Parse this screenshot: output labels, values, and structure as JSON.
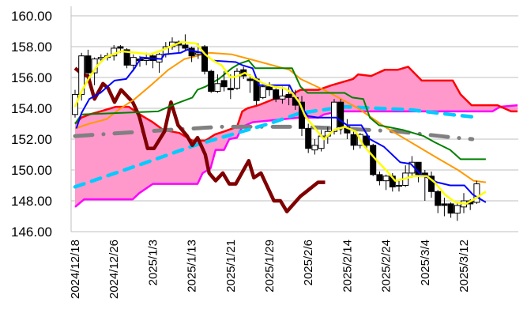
{
  "chart_data": {
    "type": "candlestick",
    "title": "",
    "ylim": [
      146,
      160
    ],
    "y_ticks": [
      "146.00",
      "148.00",
      "150.00",
      "152.00",
      "154.00",
      "156.00",
      "158.00",
      "160.00"
    ],
    "y_tick_values": [
      146,
      148,
      150,
      152,
      154,
      156,
      158,
      160
    ],
    "x_tick_labels": [
      "2024/12/18",
      "2024/12/26",
      "2025/1/3",
      "2025/1/13",
      "2025/1/21",
      "2025/1/29",
      "2025/2/6",
      "2025/2/14",
      "2025/2/24",
      "2025/3/4",
      "2025/3/12"
    ],
    "x_tick_index": [
      0,
      6,
      12,
      18,
      24,
      30,
      36,
      42,
      48,
      54,
      60
    ],
    "grid": true,
    "colors": {
      "cloud": "#ff99cc",
      "senkou_a": "#ff0000",
      "senkou_b": "#ff00ff",
      "tenkan": "#ffff00",
      "kijun": "#0000ff",
      "ma_green": "#008000",
      "ma_orange": "#ff9900",
      "chikou": "#800000",
      "dash_cyan": "#00ccff",
      "dash_gray": "#808080"
    },
    "candles_ohlc": [
      [
        153.6,
        155.2,
        153.4,
        154.9
      ],
      [
        154.9,
        157.6,
        154.5,
        157.4
      ],
      [
        157.4,
        157.8,
        156.1,
        156.3
      ],
      [
        156.3,
        157.3,
        155.5,
        157.2
      ],
      [
        157.2,
        157.5,
        157.0,
        157.3
      ],
      [
        157.3,
        157.6,
        157.1,
        157.4
      ],
      [
        157.4,
        158.1,
        157.1,
        157.9
      ],
      [
        158.0,
        158.1,
        157.6,
        157.9
      ],
      [
        157.8,
        157.9,
        156.6,
        156.8
      ],
      [
        156.8,
        157.5,
        156.4,
        157.3
      ],
      [
        157.2,
        157.4,
        156.7,
        157.1
      ],
      [
        157.1,
        157.6,
        156.8,
        157.2
      ],
      [
        157.4,
        157.5,
        156.6,
        157.1
      ],
      [
        157.0,
        157.6,
        156.3,
        157.5
      ],
      [
        157.5,
        158.3,
        157.3,
        158.0
      ],
      [
        158.0,
        158.6,
        157.8,
        158.3
      ],
      [
        158.3,
        158.4,
        157.6,
        158.1
      ],
      [
        158.1,
        158.8,
        157.7,
        157.9
      ],
      [
        157.9,
        158.0,
        157.0,
        157.4
      ],
      [
        157.5,
        158.2,
        157.2,
        157.6
      ],
      [
        158.0,
        158.1,
        156.2,
        156.4
      ],
      [
        156.4,
        156.5,
        155.0,
        155.1
      ],
      [
        155.1,
        156.2,
        155.0,
        155.6
      ],
      [
        155.8,
        156.4,
        155.1,
        155.4
      ],
      [
        155.3,
        156.2,
        154.6,
        155.2
      ],
      [
        155.3,
        156.6,
        155.2,
        156.4
      ],
      [
        156.5,
        156.7,
        155.9,
        156.1
      ],
      [
        155.9,
        156.2,
        155.0,
        155.8
      ],
      [
        155.9,
        156.0,
        154.2,
        154.5
      ],
      [
        154.7,
        155.6,
        154.6,
        155.4
      ],
      [
        155.4,
        155.7,
        154.8,
        155.2
      ],
      [
        155.2,
        155.3,
        154.4,
        154.6
      ],
      [
        154.6,
        155.4,
        154.3,
        154.8
      ],
      [
        154.9,
        155.5,
        154.2,
        154.7
      ],
      [
        154.7,
        155.2,
        153.9,
        154.2
      ],
      [
        154.4,
        154.8,
        152.2,
        152.7
      ],
      [
        152.7,
        153.0,
        151.1,
        151.4
      ],
      [
        151.3,
        152.0,
        151.0,
        151.6
      ],
      [
        151.4,
        152.6,
        151.2,
        152.2
      ],
      [
        152.2,
        152.8,
        151.7,
        152.5
      ],
      [
        152.5,
        154.6,
        152.3,
        154.4
      ],
      [
        154.4,
        154.6,
        152.3,
        152.8
      ],
      [
        152.8,
        153.3,
        152.0,
        152.4
      ],
      [
        152.3,
        152.5,
        151.3,
        151.6
      ],
      [
        151.6,
        152.4,
        151.4,
        152.3
      ],
      [
        152.2,
        152.4,
        151.3,
        151.6
      ],
      [
        151.6,
        151.7,
        149.6,
        149.7
      ],
      [
        149.7,
        149.9,
        149.0,
        149.3
      ],
      [
        149.3,
        149.7,
        148.7,
        149.6
      ],
      [
        149.6,
        149.8,
        148.6,
        148.9
      ],
      [
        149.0,
        149.3,
        148.6,
        149.0
      ],
      [
        149.0,
        150.3,
        148.9,
        149.8
      ],
      [
        149.8,
        150.9,
        149.5,
        150.5
      ],
      [
        150.5,
        150.5,
        149.2,
        149.7
      ],
      [
        149.8,
        150.0,
        148.0,
        149.6
      ],
      [
        149.6,
        149.9,
        148.2,
        148.6
      ],
      [
        148.6,
        148.7,
        147.2,
        147.7
      ],
      [
        147.8,
        148.2,
        147.0,
        147.7
      ],
      [
        147.8,
        147.9,
        146.9,
        147.2
      ],
      [
        147.2,
        147.9,
        146.7,
        147.7
      ],
      [
        147.6,
        148.5,
        147.2,
        148.0
      ],
      [
        148.0,
        148.1,
        147.4,
        147.8
      ],
      [
        147.9,
        149.3,
        147.8,
        149.1
      ]
    ],
    "senkou_a": [
      [
        0,
        153
      ],
      [
        1,
        153.4
      ],
      [
        2.2,
        153.6
      ],
      [
        3.9,
        153.8
      ],
      [
        6.3,
        154.1
      ],
      [
        8.3,
        154.1
      ],
      [
        10.4,
        153.5
      ],
      [
        12,
        153.1
      ],
      [
        13.6,
        152.6
      ],
      [
        16.1,
        152.4
      ],
      [
        18.1,
        151.9
      ],
      [
        20.1,
        151.9
      ],
      [
        21.6,
        152.3
      ],
      [
        23,
        152.5
      ],
      [
        25,
        152.8
      ],
      [
        25.8,
        153.8
      ],
      [
        26.6,
        154
      ],
      [
        28.3,
        154.2
      ],
      [
        30.7,
        154.6
      ],
      [
        32.7,
        154.8
      ],
      [
        33.9,
        155
      ],
      [
        34.8,
        155.2
      ],
      [
        37.6,
        155.2
      ],
      [
        39.6,
        155.5
      ],
      [
        42.9,
        155.9
      ],
      [
        43.7,
        156.2
      ],
      [
        45.7,
        156.1
      ],
      [
        47.8,
        156.5
      ],
      [
        49.8,
        156.5
      ],
      [
        51.4,
        156.7
      ],
      [
        53.5,
        155.8
      ],
      [
        58.3,
        155.8
      ],
      [
        59.5,
        154.9
      ],
      [
        61.2,
        154.2
      ],
      [
        65.2,
        154.2
      ],
      [
        67.3,
        153.8
      ],
      [
        68.3,
        153.8
      ]
    ],
    "senkou_b": [
      [
        0,
        147.6
      ],
      [
        1.4,
        148.1
      ],
      [
        8.9,
        148.1
      ],
      [
        9.9,
        148.5
      ],
      [
        12,
        149.1
      ],
      [
        18.9,
        149.1
      ],
      [
        19.7,
        149.8
      ],
      [
        20.9,
        150.1
      ],
      [
        21.7,
        151.3
      ],
      [
        23,
        151.3
      ],
      [
        23.8,
        152
      ],
      [
        25,
        152.1
      ],
      [
        25.8,
        152.8
      ],
      [
        27.4,
        153.1
      ],
      [
        34.6,
        153.4
      ],
      [
        37.6,
        153.4
      ],
      [
        38.4,
        153.6
      ],
      [
        40.8,
        153.8
      ],
      [
        64.4,
        153.8
      ],
      [
        65.6,
        154.1
      ],
      [
        68.3,
        154.2
      ]
    ],
    "tenkan": [
      [
        0,
        154.1
      ],
      [
        1,
        155.1
      ],
      [
        2.2,
        156
      ],
      [
        3.5,
        156.8
      ],
      [
        4.7,
        157.3
      ],
      [
        5.9,
        157.5
      ],
      [
        7.1,
        157.7
      ],
      [
        9.5,
        157.6
      ],
      [
        11.6,
        157.5
      ],
      [
        13.6,
        157.8
      ],
      [
        15.2,
        158.1
      ],
      [
        16.5,
        158.3
      ],
      [
        18.7,
        158.2
      ],
      [
        20.1,
        157.5
      ],
      [
        21.3,
        157.1
      ],
      [
        22.6,
        156.8
      ],
      [
        24,
        156
      ],
      [
        25.2,
        156.1
      ],
      [
        26.2,
        156.3
      ],
      [
        27.8,
        155.9
      ],
      [
        29.1,
        155.6
      ],
      [
        30.7,
        155.4
      ],
      [
        32.3,
        155.3
      ],
      [
        33.5,
        155
      ],
      [
        34.6,
        154.4
      ],
      [
        35.5,
        153.5
      ],
      [
        38.4,
        152
      ],
      [
        40,
        152.6
      ],
      [
        41.6,
        152.8
      ],
      [
        43.3,
        152.5
      ],
      [
        44.5,
        151.6
      ],
      [
        46.6,
        150.6
      ],
      [
        48.2,
        149.9
      ],
      [
        49.4,
        149.3
      ],
      [
        50.6,
        149.4
      ],
      [
        52.2,
        149.6
      ],
      [
        54.3,
        149.6
      ],
      [
        55.5,
        149.2
      ],
      [
        57.1,
        148.4
      ],
      [
        58.7,
        147.9
      ],
      [
        60.3,
        147.8
      ],
      [
        61.6,
        148.1
      ],
      [
        63.4,
        148.6
      ]
    ],
    "kijun": [
      [
        0.2,
        152.7
      ],
      [
        1,
        153.7
      ],
      [
        2.2,
        154.6
      ],
      [
        3.9,
        155
      ],
      [
        6.1,
        155.8
      ],
      [
        7.9,
        155.9
      ],
      [
        9.2,
        156.6
      ],
      [
        10.2,
        157.3
      ],
      [
        13.3,
        157.2
      ],
      [
        13.8,
        157.5
      ],
      [
        16.3,
        157.6
      ],
      [
        17.3,
        157.8
      ],
      [
        19.7,
        157.6
      ],
      [
        21.3,
        157.1
      ],
      [
        24.8,
        157
      ],
      [
        25.8,
        156.8
      ],
      [
        27.4,
        156.6
      ],
      [
        28.4,
        155.5
      ],
      [
        33.1,
        155.5
      ],
      [
        34.3,
        154.5
      ],
      [
        35.9,
        153.5
      ],
      [
        37.5,
        153.4
      ],
      [
        40.3,
        153.4
      ],
      [
        42,
        152.9
      ],
      [
        44.2,
        152.9
      ],
      [
        45.5,
        152
      ],
      [
        47.7,
        151.5
      ],
      [
        50.2,
        150.5
      ],
      [
        51.8,
        150.4
      ],
      [
        53.4,
        149.7
      ],
      [
        55.9,
        149.2
      ],
      [
        57.9,
        149
      ],
      [
        60.1,
        149
      ],
      [
        61.4,
        148.4
      ],
      [
        63.4,
        147.9
      ]
    ],
    "ma_green": [
      [
        0,
        153
      ],
      [
        1,
        153.6
      ],
      [
        12.8,
        153.8
      ],
      [
        15.6,
        154.3
      ],
      [
        18.1,
        154.7
      ],
      [
        18.9,
        155.2
      ],
      [
        20.1,
        155.4
      ],
      [
        22.2,
        155.9
      ],
      [
        24.2,
        156.6
      ],
      [
        25.4,
        156.9
      ],
      [
        26.8,
        157.1
      ],
      [
        27.8,
        156.6
      ],
      [
        33.5,
        156.6
      ],
      [
        34.8,
        155.4
      ],
      [
        35.9,
        155
      ],
      [
        41.6,
        155
      ],
      [
        42.8,
        154.7
      ],
      [
        44.5,
        154.6
      ],
      [
        45.5,
        153.4
      ],
      [
        46.9,
        152.9
      ],
      [
        50.6,
        152.6
      ],
      [
        53.8,
        152.2
      ],
      [
        55.5,
        151.8
      ],
      [
        57.9,
        151.3
      ],
      [
        59.5,
        150.7
      ],
      [
        63.4,
        150.7
      ]
    ],
    "ma_orange": [
      [
        0,
        152.7
      ],
      [
        2.2,
        153
      ],
      [
        4.9,
        153.3
      ],
      [
        6.7,
        153.9
      ],
      [
        9.2,
        154.6
      ],
      [
        12,
        155.6
      ],
      [
        14.4,
        156.5
      ],
      [
        16.9,
        157.2
      ],
      [
        20.7,
        157.6
      ],
      [
        24.2,
        157.5
      ],
      [
        27.8,
        157.1
      ],
      [
        33.1,
        156.5
      ],
      [
        34.8,
        155.9
      ],
      [
        38.9,
        155.1
      ],
      [
        43.7,
        154
      ],
      [
        47.8,
        152.8
      ],
      [
        51.8,
        151.8
      ],
      [
        55.8,
        150.8
      ],
      [
        59.1,
        150
      ],
      [
        61.5,
        149.3
      ],
      [
        63.4,
        149.2
      ]
    ],
    "chikou": [
      [
        0,
        156.6
      ],
      [
        1.2,
        156.2
      ],
      [
        2,
        156.1
      ],
      [
        3,
        154.6
      ],
      [
        4.3,
        155.6
      ],
      [
        5.1,
        155.3
      ],
      [
        6.1,
        154.4
      ],
      [
        7.1,
        155.2
      ],
      [
        8.9,
        154.4
      ],
      [
        9.9,
        153.5
      ],
      [
        11.2,
        151.4
      ],
      [
        12.2,
        151.4
      ],
      [
        13.8,
        152.5
      ],
      [
        14.8,
        154.4
      ],
      [
        15.9,
        152.9
      ],
      [
        17.3,
        152.2
      ],
      [
        18.1,
        151.6
      ],
      [
        18.9,
        152.1
      ],
      [
        20.1,
        151
      ],
      [
        20.7,
        149.8
      ],
      [
        21.7,
        149.3
      ],
      [
        22.8,
        149.8
      ],
      [
        23.8,
        149.1
      ],
      [
        24.8,
        149.1
      ],
      [
        26.8,
        150.6
      ],
      [
        27.6,
        149.5
      ],
      [
        28.7,
        149.8
      ],
      [
        30.7,
        148
      ],
      [
        31.7,
        148
      ],
      [
        32.7,
        147.3
      ],
      [
        34.8,
        148.3
      ],
      [
        35.4,
        148.5
      ],
      [
        37.5,
        149.2
      ],
      [
        38.6,
        149.2
      ]
    ],
    "dash_cyan": [
      [
        0,
        148.9
      ],
      [
        10.4,
        150.4
      ],
      [
        18.5,
        151.6
      ],
      [
        25,
        152.4
      ],
      [
        29.9,
        153
      ],
      [
        34.8,
        153.7
      ],
      [
        41.6,
        154.1
      ],
      [
        51.8,
        153.9
      ],
      [
        57.9,
        153.6
      ],
      [
        62.4,
        153.4
      ]
    ],
    "dash_gray": [
      [
        0,
        152.2
      ],
      [
        14.4,
        152.6
      ],
      [
        22.6,
        152.8
      ],
      [
        34.8,
        152.8
      ],
      [
        40.8,
        152.7
      ],
      [
        49.8,
        152.5
      ],
      [
        58.6,
        152.1
      ],
      [
        61.3,
        152
      ]
    ]
  }
}
